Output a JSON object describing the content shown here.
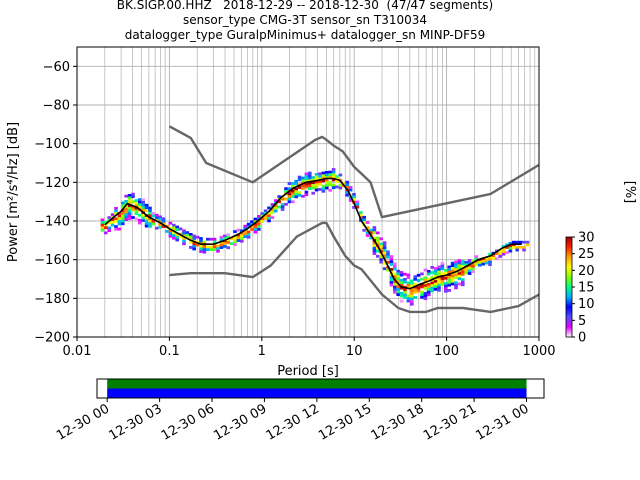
{
  "title": {
    "line1": "BK.SIGP.00.HHZ   2018-12-29 -- 2018-12-30  (47/47 segments)",
    "line2": "sensor_type CMG-3T sensor_sn T310034",
    "line3": "datalogger_type GuralpMinimus+ datalogger_sn MINP-DF59"
  },
  "chart_data": [
    {
      "type": "heatmap",
      "title": "BK.SIGP.00.HHZ   2018-12-29 -- 2018-12-30  (47/47 segments)",
      "xlabel": "Period [s]",
      "ylabel": "Power [m²/s⁴/Hz] [dB]",
      "xscale": "log",
      "xlim": [
        0.01,
        1000
      ],
      "ylim": [
        -200,
        -50
      ],
      "xticks": [
        0.01,
        0.1,
        1,
        10,
        100,
        1000
      ],
      "xtick_labels": [
        "0.01",
        "0.1",
        "1",
        "10",
        "100",
        "1000"
      ],
      "yticks": [
        -200,
        -180,
        -160,
        -140,
        -120,
        -100,
        -80,
        -60
      ],
      "ytick_labels": [
        "−200",
        "−180",
        "−160",
        "−140",
        "−120",
        "−100",
        "−80",
        "−60"
      ],
      "grid": true,
      "colorbar": {
        "label": "[%]",
        "ticks": [
          0,
          5,
          10,
          15,
          20,
          25,
          30
        ],
        "range": [
          0,
          30
        ],
        "colormap": [
          "#ffffff",
          "#e000ff",
          "#5050ff",
          "#0000ff",
          "#00b0ff",
          "#00ff80",
          "#80ff00",
          "#ffff00",
          "#ffa000",
          "#ff2000",
          "#a00000"
        ]
      },
      "series": [
        {
          "name": "",
          "style": "mode",
          "color": "#000000",
          "x": [
            0.02,
            0.025,
            0.03,
            0.035,
            0.045,
            0.06,
            0.08,
            0.1,
            0.13,
            0.17,
            0.22,
            0.3,
            0.4,
            0.55,
            0.7,
            0.9,
            1.2,
            1.6,
            2.2,
            3,
            4,
            5,
            6,
            7,
            8.5,
            10,
            12,
            15,
            18,
            22,
            27,
            32,
            40,
            50,
            65,
            80,
            100,
            130,
            170,
            220,
            300,
            400,
            500,
            650
          ],
          "y": [
            -142,
            -138,
            -135,
            -131,
            -133,
            -138,
            -141,
            -144,
            -147,
            -150,
            -152,
            -152,
            -150,
            -147,
            -144,
            -140,
            -135,
            -128,
            -123,
            -120,
            -119,
            -118,
            -118,
            -119,
            -124,
            -131,
            -140,
            -147,
            -153,
            -161,
            -170,
            -174,
            -175,
            -173,
            -171,
            -169,
            -168,
            -166,
            -163,
            -160,
            -158,
            -154,
            -152,
            -152
          ]
        },
        {
          "name": "",
          "style": "noise_model_upper",
          "color": "#666666",
          "x": [
            0.1,
            0.17,
            0.25,
            0.8,
            3.8,
            4.5,
            5,
            6,
            7.5,
            10,
            15,
            20,
            300,
            1000
          ],
          "y": [
            -91,
            -97,
            -110,
            -120,
            -98,
            -96.5,
            -98,
            -101,
            -104,
            -112,
            -120,
            -138,
            -126,
            -111
          ]
        },
        {
          "name": "",
          "style": "noise_model_lower",
          "color": "#666666",
          "x": [
            0.1,
            0.17,
            0.4,
            0.8,
            1.25,
            2.4,
            4.5,
            5,
            6,
            8,
            10,
            12,
            20,
            30,
            40,
            60,
            80,
            100,
            150,
            300,
            600,
            1000
          ],
          "y": [
            -168,
            -167,
            -167,
            -169,
            -163,
            -148,
            -141,
            -141,
            -148,
            -158,
            -163,
            -165,
            -178,
            -185,
            -187,
            -187,
            -185,
            -185,
            -185,
            -187,
            -184,
            -178
          ]
        }
      ]
    },
    {
      "type": "timeline",
      "xlim": [
        "2018-12-29T23:25",
        "2018-12-31T01:00"
      ],
      "data_range": [
        "2018-12-30T00:00",
        "2018-12-31T00:00"
      ],
      "xtick_labels": [
        "12-30 00",
        "12-30 03",
        "12-30 06",
        "12-30 09",
        "12-30 12",
        "12-30 15",
        "12-30 18",
        "12-30 21",
        "12-31 00"
      ],
      "xticks_hours": [
        0,
        3,
        6,
        9,
        12,
        15,
        18,
        21,
        24
      ],
      "bands": [
        {
          "color": "#008000",
          "fraction": 0.5
        },
        {
          "color": "#0000ff",
          "fraction": 0.5
        }
      ]
    }
  ]
}
